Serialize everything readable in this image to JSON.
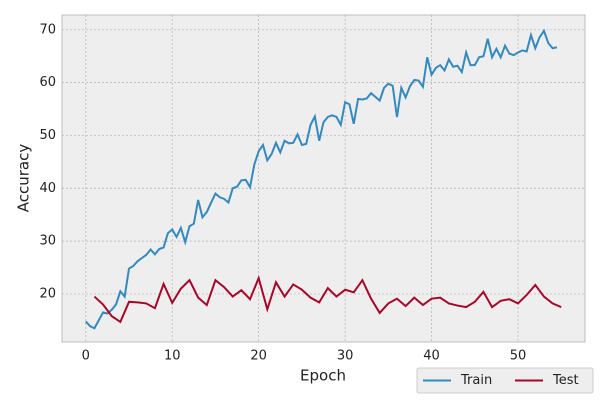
{
  "chart_data": {
    "type": "line",
    "xlabel": "Epoch",
    "ylabel": "Accuracy",
    "xlim": [
      -2.75,
      57.75
    ],
    "ylim": [
      10.9,
      72.8
    ],
    "xticks": [
      0,
      10,
      20,
      30,
      40,
      50
    ],
    "yticks": [
      20,
      30,
      40,
      50,
      60,
      70
    ],
    "grid": true,
    "legend": "lower right",
    "series": [
      {
        "name": "Train",
        "color": "#348abd",
        "x": [
          0,
          0.5,
          1,
          1.5,
          2,
          2.5,
          3,
          3.5,
          4,
          4.5,
          5,
          5.5,
          6,
          6.5,
          7,
          7.5,
          8,
          8.5,
          9,
          9.5,
          10,
          10.5,
          11,
          11.5,
          12,
          12.5,
          13,
          13.5,
          14,
          14.5,
          15,
          15.5,
          16,
          16.5,
          17,
          17.5,
          18,
          18.5,
          19,
          19.5,
          20,
          20.5,
          21,
          21.5,
          22,
          22.5,
          23,
          23.5,
          24,
          24.5,
          25,
          25.5,
          26,
          26.5,
          27,
          27.5,
          28,
          28.5,
          29,
          29.5,
          30,
          30.5,
          31,
          31.5,
          32,
          32.5,
          33,
          33.5,
          34,
          34.5,
          35,
          35.5,
          36,
          36.5,
          37,
          37.5,
          38,
          38.5,
          39,
          39.5,
          40,
          40.5,
          41,
          41.5,
          42,
          42.5,
          43,
          43.5,
          44,
          44.5,
          45,
          45.5,
          46,
          46.5,
          47,
          47.5,
          48,
          48.5,
          49,
          49.5,
          50,
          50.5,
          51,
          51.5,
          52,
          52.5,
          53,
          53.5,
          54,
          54.5
        ],
        "values": [
          14.8,
          13.9,
          13.5,
          15,
          16.5,
          16.3,
          17,
          18,
          20.5,
          19.5,
          24.8,
          25.3,
          26.2,
          26.8,
          27.4,
          28.4,
          27.5,
          28.5,
          28.8,
          31.5,
          32.2,
          30.8,
          32.5,
          29.8,
          32.8,
          33.3,
          37.8,
          34.5,
          35.5,
          37.3,
          39,
          38.3,
          38,
          37.3,
          40,
          40.3,
          41.5,
          41.6,
          40.2,
          44.5,
          47,
          48.2,
          45.3,
          46.5,
          48.6,
          46.8,
          49,
          48.5,
          48.6,
          50.2,
          48.2,
          48.4,
          52,
          53.6,
          49,
          52.5,
          53.5,
          53.8,
          53.5,
          52,
          56.3,
          55.9,
          52.2,
          56.9,
          56.8,
          57,
          58,
          57.3,
          56.6,
          59,
          59.8,
          59.4,
          53.5,
          59,
          57.2,
          59.3,
          60.5,
          60.4,
          59.2,
          64.8,
          61.5,
          62.8,
          63.3,
          62.3,
          64.4,
          63,
          63.2,
          62,
          65.7,
          63.3,
          63.3,
          64.8,
          65,
          68.3,
          64.8,
          66.4,
          64.8,
          67,
          65.5,
          65.2,
          65.7,
          66.1,
          65.9,
          69,
          66.5,
          68.6,
          69.8,
          67.5,
          66.5,
          66.7
        ]
      },
      {
        "name": "Test",
        "color": "#a60628",
        "x": [
          1,
          2,
          3,
          4,
          5,
          6,
          7,
          8,
          9,
          10,
          11,
          12,
          13,
          14,
          15,
          16,
          17,
          18,
          19,
          20,
          21,
          22,
          23,
          24,
          25,
          26,
          27,
          28,
          29,
          30,
          31,
          32,
          33,
          34,
          35,
          36,
          37,
          38,
          39,
          40,
          41,
          42,
          43,
          44,
          45,
          46,
          47,
          48,
          49,
          50,
          51,
          52,
          53,
          54,
          55
        ],
        "values": [
          19.5,
          18,
          15.8,
          14.7,
          18.5,
          18.4,
          18.2,
          17.3,
          21.9,
          18.3,
          21,
          22.6,
          19.3,
          17.9,
          22.6,
          21.3,
          19.5,
          20.7,
          19,
          23,
          17.1,
          22.2,
          19.5,
          21.8,
          20.8,
          19.3,
          18.4,
          21.1,
          19.5,
          20.8,
          20.3,
          22.6,
          19.1,
          16.4,
          18.2,
          19.1,
          17.7,
          19.3,
          17.9,
          19.1,
          19.3,
          18.2,
          17.8,
          17.5,
          18.5,
          20.4,
          17.5,
          18.7,
          19,
          18.2,
          19.8,
          21.7,
          19.5,
          18.2,
          17.5
        ]
      }
    ]
  }
}
